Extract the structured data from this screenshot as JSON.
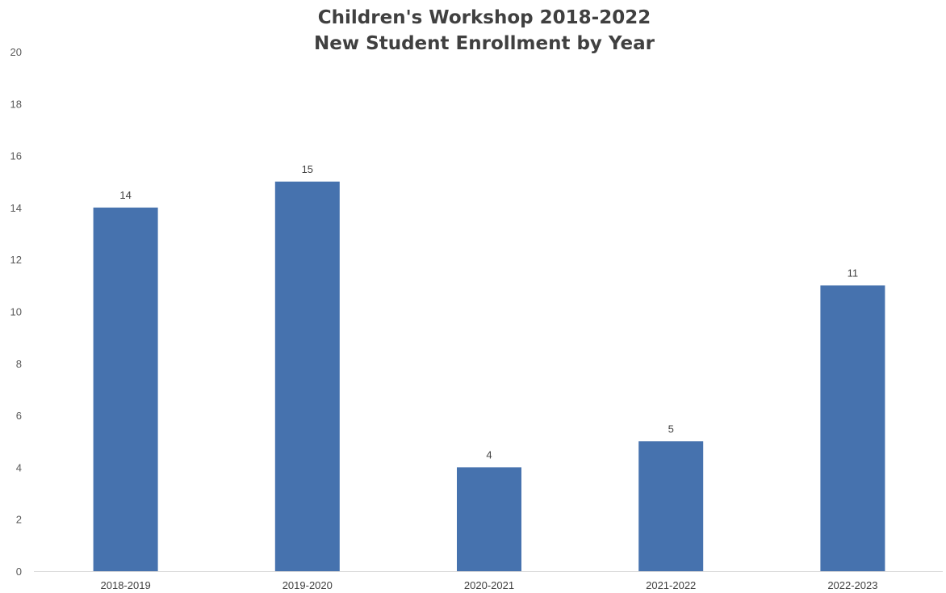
{
  "chart_data": {
    "type": "bar",
    "title": "Children's Workshop 2018-2022",
    "subtitle": "New Student Enrollment by Year",
    "xlabel": "",
    "ylabel": "",
    "categories": [
      "2018-2019",
      "2019-2020",
      "2020-2021",
      "2021-2022",
      "2022-2023"
    ],
    "values": [
      14,
      15,
      4,
      5,
      11
    ],
    "ylim": [
      0,
      20
    ],
    "yticks": [
      0,
      2,
      4,
      6,
      8,
      10,
      12,
      14,
      16,
      18,
      20
    ],
    "data_labels": true,
    "grid": false,
    "legend": "none",
    "bar_color": "#4672AE"
  }
}
